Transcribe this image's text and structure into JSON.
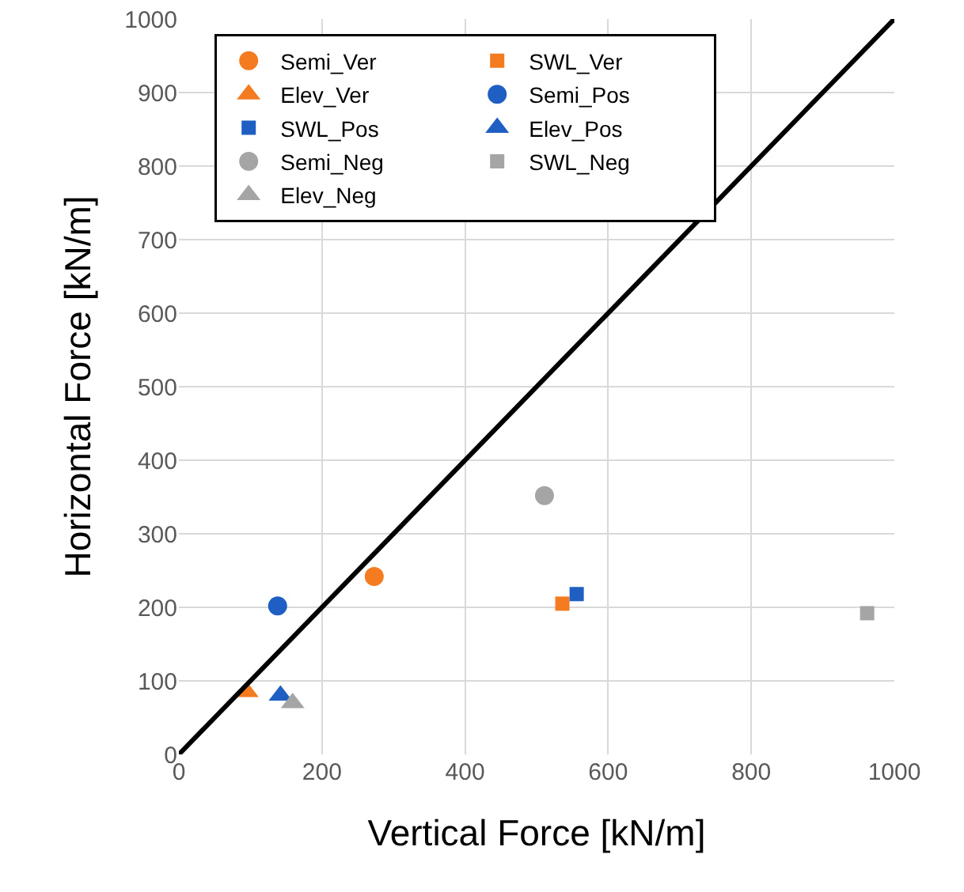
{
  "chart_data": {
    "type": "scatter",
    "xlabel": "Vertical Force [kN/m]",
    "ylabel": "Horizontal Force [kN/m]",
    "xlim": [
      0,
      1000
    ],
    "xticks": [
      0,
      200,
      400,
      600,
      800,
      1000
    ],
    "ylim": [
      0,
      1000
    ],
    "yticks": [
      0,
      100,
      200,
      300,
      400,
      500,
      600,
      700,
      800,
      900,
      1000
    ],
    "grid": true,
    "legend": "top left",
    "series": [
      {
        "name": "Semi_Ver",
        "color": "#f47b20",
        "marker": "circle",
        "x": [
          273
        ],
        "values": [
          242
        ]
      },
      {
        "name": "SWL_Ver",
        "color": "#f47b20",
        "marker": "square",
        "x": [
          536
        ],
        "values": [
          205
        ]
      },
      {
        "name": "Elev_Ver",
        "color": "#f47b20",
        "marker": "triangle",
        "x": [
          95
        ],
        "values": [
          85
        ]
      },
      {
        "name": "Semi_Pos",
        "color": "#1f5fc4",
        "marker": "circle",
        "x": [
          138
        ],
        "values": [
          202
        ]
      },
      {
        "name": "SWL_Pos",
        "color": "#1f5fc4",
        "marker": "square",
        "x": [
          556
        ],
        "values": [
          218
        ]
      },
      {
        "name": "Elev_Pos",
        "color": "#1f5fc4",
        "marker": "triangle",
        "x": [
          142
        ],
        "values": [
          80
        ]
      },
      {
        "name": "Semi_Neg",
        "color": "#a5a5a5",
        "marker": "circle",
        "x": [
          511
        ],
        "values": [
          352
        ]
      },
      {
        "name": "SWL_Neg",
        "color": "#a5a5a5",
        "marker": "square",
        "x": [
          962
        ],
        "values": [
          192
        ]
      },
      {
        "name": "Elev_Neg",
        "color": "#a5a5a5",
        "marker": "triangle",
        "x": [
          159
        ],
        "values": [
          70
        ]
      },
      {
        "type": "line",
        "color": "#000000",
        "marker": "none",
        "x": [
          0,
          1000
        ],
        "values": [
          0,
          1000
        ]
      }
    ]
  }
}
